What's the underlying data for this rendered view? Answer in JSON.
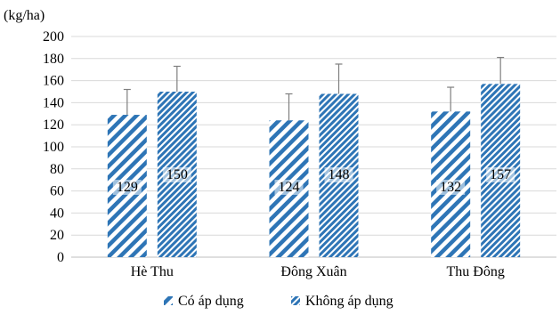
{
  "chart_data": {
    "type": "bar",
    "unit_label": "(kg/ha)",
    "categories": [
      "Hè Thu",
      "Đông Xuân",
      "Thu Đông"
    ],
    "series": [
      {
        "name": "Có áp dụng",
        "values": [
          129,
          124,
          132
        ],
        "error_upper": [
          152,
          148,
          154
        ],
        "data_labels": [
          "129",
          "124",
          "132"
        ],
        "pattern": "diagonal-stripes-wide",
        "color": "#2E75B6"
      },
      {
        "name": "Không áp dụng",
        "values": [
          150,
          148,
          157
        ],
        "error_upper": [
          173,
          175,
          181
        ],
        "data_labels": [
          "150",
          "148",
          "157"
        ],
        "pattern": "diagonal-stripes-dense",
        "color": "#2E75B6"
      }
    ],
    "ylim": [
      0,
      200
    ],
    "yticks": [
      "0",
      "20",
      "40",
      "60",
      "80",
      "100",
      "120",
      "140",
      "160",
      "180",
      "200"
    ],
    "grid": true,
    "grid_color": "#D9D9D9",
    "error_bar_color": "#7F7F7F",
    "legend_position": "bottom"
  }
}
